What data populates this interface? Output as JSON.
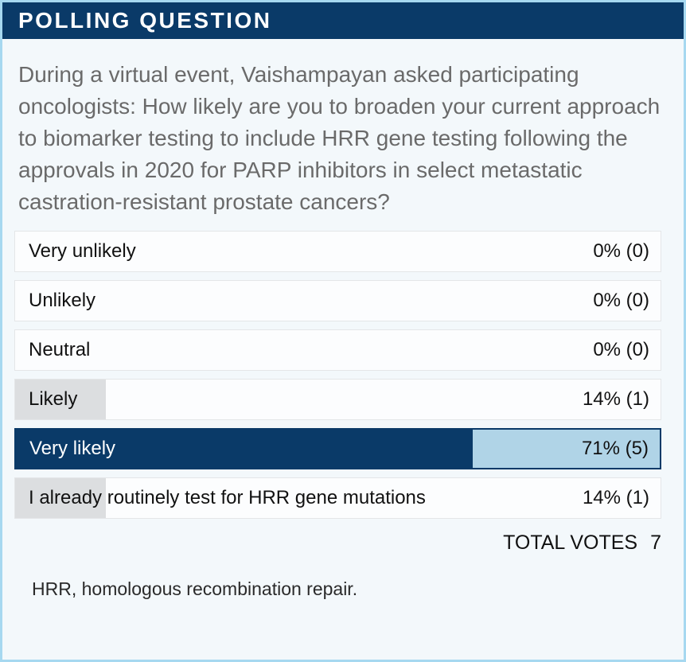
{
  "colors": {
    "navy": "#0a3a68",
    "highlight_fill": "#b0d4e7",
    "card_border": "#a6d8f0",
    "card_bg": "#f3f8fb",
    "row_bg": "#fcfdfe",
    "row_border": "#e4e6e8",
    "gray_bar": "#dcdee0",
    "question_text": "#6a6a6a"
  },
  "header": {
    "title": "POLLING QUESTION"
  },
  "question": "During a virtual event, Vaishampayan asked participating oncologists: How likely are you to broaden your current approach to biomarker testing to include HRR gene testing following the approvals in 2020 for PARP inhibitors in select metastatic castration-resistant prostate cancers?",
  "poll": {
    "options": [
      {
        "label": "Very unlikely",
        "value": "0% (0)",
        "pct": 0,
        "style": "plain"
      },
      {
        "label": "Unlikely",
        "value": "0% (0)",
        "pct": 0,
        "style": "plain"
      },
      {
        "label": "Neutral",
        "value": "0% (0)",
        "pct": 0,
        "style": "plain"
      },
      {
        "label": "Likely",
        "value": "14% (1)",
        "pct": 14,
        "style": "gray"
      },
      {
        "label": "Very likely",
        "value": "71% (5)",
        "pct": 71,
        "style": "highlight"
      },
      {
        "label": "I already routinely test for HRR gene mutations",
        "value": "14% (1)",
        "pct": 14,
        "style": "gray"
      }
    ],
    "total_votes_label": "TOTAL VOTES",
    "total_votes": "7"
  },
  "footnote": "HRR, homologous recombination repair.",
  "chart_data": {
    "type": "bar",
    "title": "POLLING QUESTION",
    "orientation": "horizontal",
    "categories": [
      "Very unlikely",
      "Unlikely",
      "Neutral",
      "Likely",
      "Very likely",
      "I already routinely test for HRR gene mutations"
    ],
    "values": [
      0,
      0,
      0,
      14,
      71,
      14
    ],
    "counts": [
      0,
      0,
      0,
      1,
      5,
      1
    ],
    "unit": "%",
    "xlim": [
      0,
      100
    ],
    "total_votes": 7,
    "highlighted_category": "Very likely"
  }
}
